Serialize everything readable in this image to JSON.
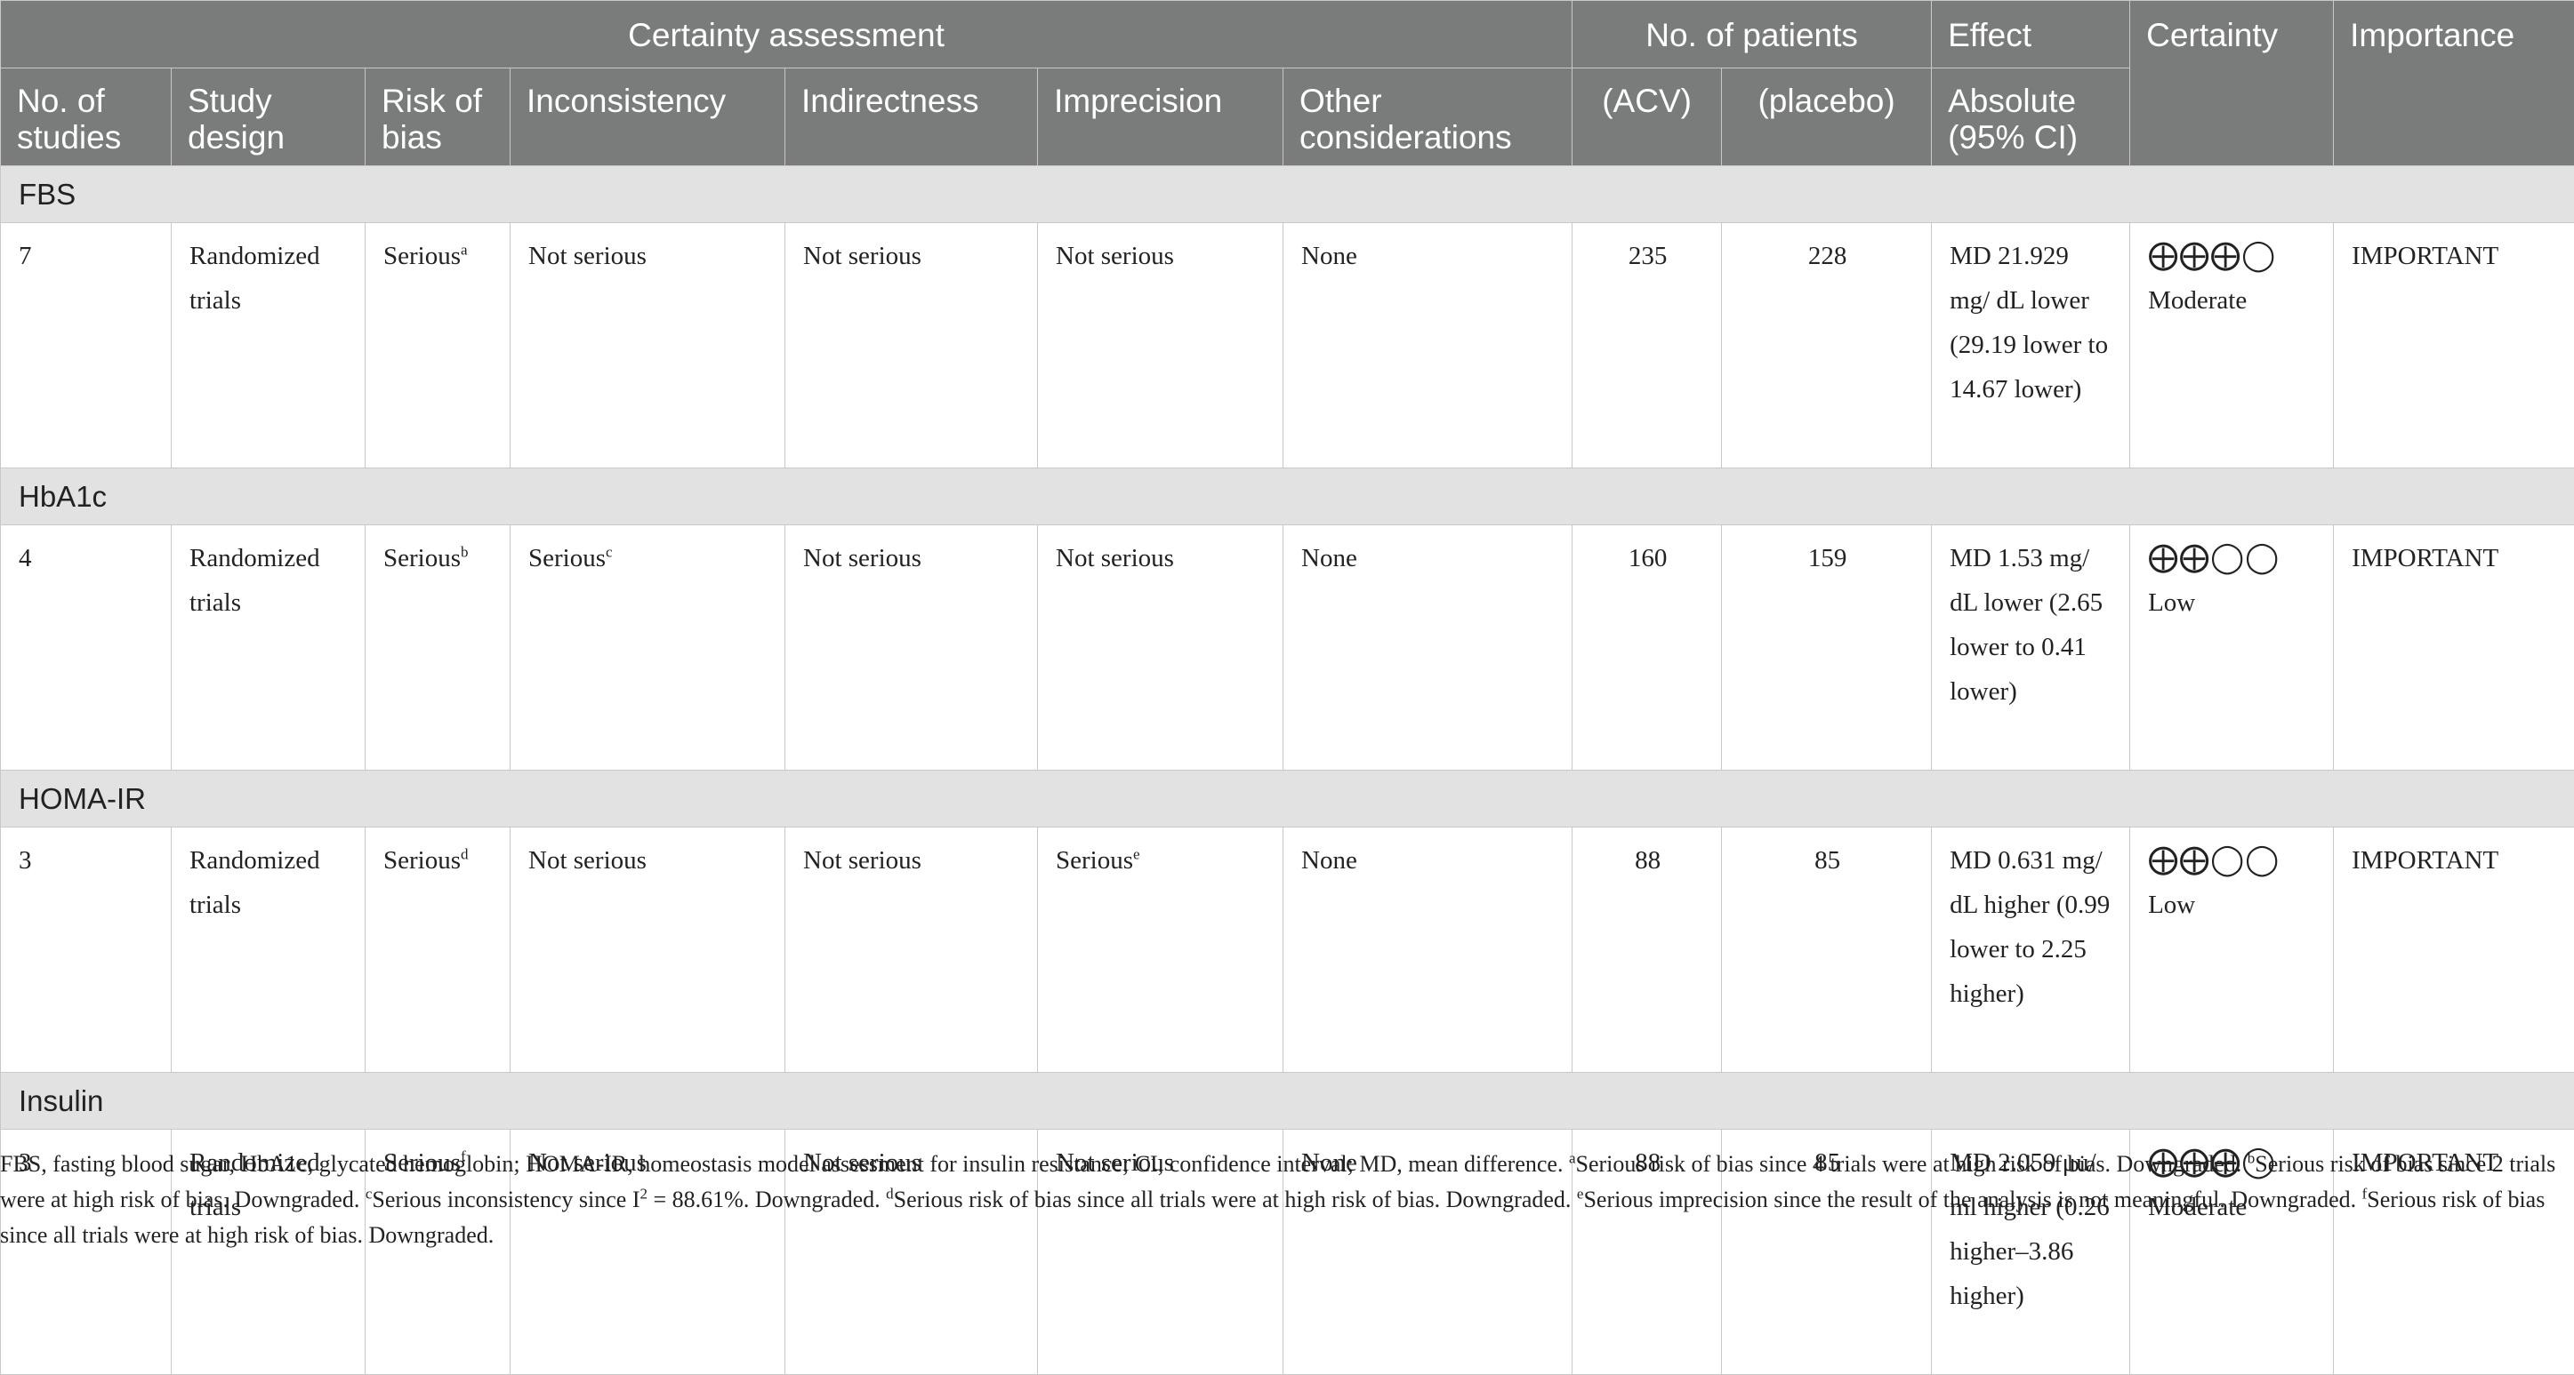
{
  "header": {
    "certainty_assessment": "Certainty assessment",
    "no_of_patients": "No. of patients",
    "effect": "Effect",
    "certainty": "Certainty",
    "importance": "Importance",
    "no_of_studies": "No. of studies",
    "study_design": "Study design",
    "risk_of_bias": "Risk of bias",
    "inconsistency": "Inconsistency",
    "indirectness": "Indirectness",
    "imprecision": "Imprecision",
    "other_considerations": "Other considerations",
    "acv": "(ACV)",
    "placebo": "(placebo)",
    "absolute": "Absolute (95% CI)"
  },
  "groups": [
    {
      "outcome": "FBS",
      "row": {
        "studies": "7",
        "design": "Randomized trials",
        "risk_of_bias": "Serious",
        "risk_sup": "a",
        "inconsistency": "Not serious",
        "inconsistency_sup": "",
        "indirectness": "Not serious",
        "imprecision": "Not serious",
        "imprecision_sup": "",
        "other": "None",
        "acv": "235",
        "placebo": "228",
        "absolute": "MD 21.929 mg/ dL lower (29.19 lower to 14.67 lower)",
        "certainty_symbols": "⨁⨁⨁◯",
        "certainty_label": "Moderate",
        "importance": "IMPORTANT"
      }
    },
    {
      "outcome": "HbA1c",
      "row": {
        "studies": "4",
        "design": "Randomized trials",
        "risk_of_bias": "Serious",
        "risk_sup": "b",
        "inconsistency": "Serious",
        "inconsistency_sup": "c",
        "indirectness": "Not serious",
        "imprecision": "Not serious",
        "imprecision_sup": "",
        "other": "None",
        "acv": "160",
        "placebo": "159",
        "absolute": "MD 1.53 mg/ dL lower (2.65 lower to 0.41 lower)",
        "certainty_symbols": "⨁⨁◯◯",
        "certainty_label": "Low",
        "importance": "IMPORTANT"
      }
    },
    {
      "outcome": "HOMA-IR",
      "row": {
        "studies": "3",
        "design": "Randomized trials",
        "risk_of_bias": "Serious",
        "risk_sup": "d",
        "inconsistency": "Not serious",
        "inconsistency_sup": "",
        "indirectness": "Not serious",
        "imprecision": "Serious",
        "imprecision_sup": "e",
        "other": "None",
        "acv": "88",
        "placebo": "85",
        "absolute": "MD 0.631 mg/ dL higher (0.99 lower to 2.25 higher)",
        "certainty_symbols": "⨁⨁◯◯",
        "certainty_label": "Low",
        "importance": "IMPORTANT"
      }
    },
    {
      "outcome": "Insulin",
      "row": {
        "studies": "3",
        "design": "Randomized trials",
        "risk_of_bias": "Serious",
        "risk_sup": "f",
        "inconsistency": "Not serious",
        "inconsistency_sup": "",
        "indirectness": "Not serious",
        "imprecision": "Not serious",
        "imprecision_sup": "",
        "other": "None",
        "acv": "88",
        "placebo": "85",
        "absolute": "MD 2.059 μu/ ml higher (0.26 higher–3.86 higher)",
        "certainty_symbols": "⨁⨁⨁◯",
        "certainty_label": "Moderate",
        "importance": "IMPORTANT"
      }
    }
  ],
  "footnote": {
    "t1": "FBS, fasting blood sugar, HbA1c, glycated hemoglobin; HOMA-IR, homeostasis model assessment for insulin resistance; CI, confidence interval; MD, mean difference. ",
    "s1": "a",
    "t2": "Serious risk of bias since 4 trials were at high risk of bias. Downgraded. ",
    "s2": "b",
    "t3": "Serious risk of bias since 2 trials were at high risk of bias. Downgraded. ",
    "s3": "c",
    "t4": "Serious inconsistency since I",
    "s4": "2",
    "t5": " = 88.61%. Downgraded. ",
    "s5": "d",
    "t6": "Serious risk of bias since all trials were at high risk of bias. Downgraded. ",
    "s6": "e",
    "t7": "Serious imprecision since the result of the analysis is not meaningful. Downgraded. ",
    "s7": "f",
    "t8": "Serious risk of bias since all trials were at high risk of bias. Downgraded."
  }
}
